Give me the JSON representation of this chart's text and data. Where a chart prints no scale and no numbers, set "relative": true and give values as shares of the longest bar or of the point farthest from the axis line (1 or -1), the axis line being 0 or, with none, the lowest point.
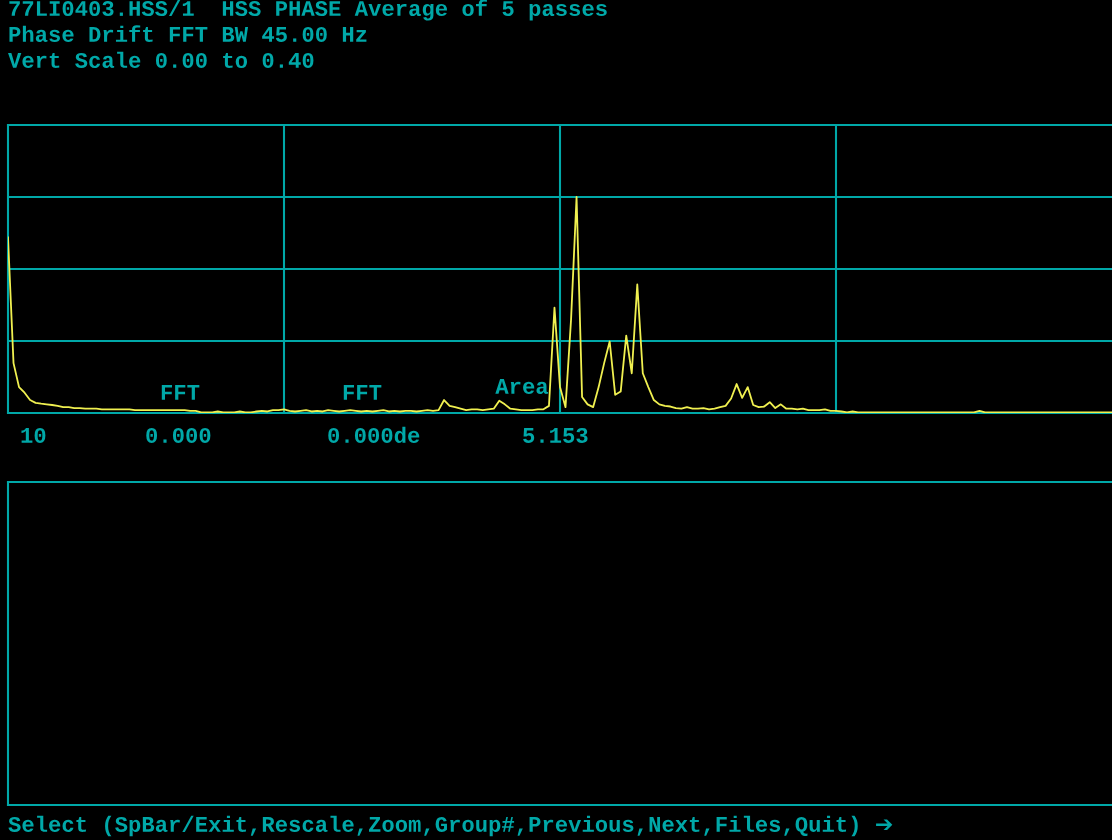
{
  "chart_data": {
    "type": "line",
    "title": "77LI0403.HSS/1  HSS PHASE Average of 5 passes",
    "subtitle": "Phase Drift FFT BW 45.00 Hz",
    "annotations": [
      "Vert Scale 0.00 to 0.40",
      "FFT",
      "FFT",
      "Area",
      "10",
      "0.000",
      "0.000de",
      "5.153",
      "Select (SpBar/Exit,Rescale,Zoom,Group#,Previous,Next,Files,Quit) ➔"
    ],
    "categories": [
      null,
      null,
      null,
      null,
      null,
      null,
      null,
      null,
      null,
      null,
      null,
      null,
      null,
      null,
      null,
      null,
      null,
      null,
      null,
      null,
      null,
      null,
      null,
      null,
      null,
      null,
      null,
      null,
      null,
      null,
      null,
      null,
      null,
      null,
      null,
      null,
      null,
      null,
      null,
      null,
      null,
      null,
      null,
      null,
      null,
      null,
      null,
      null,
      null,
      null,
      null,
      null,
      null,
      null,
      null,
      null,
      null,
      null,
      null,
      null,
      null,
      null,
      null,
      null,
      null,
      null,
      null,
      null,
      null,
      null,
      null,
      null,
      null,
      null,
      null,
      null,
      null,
      null,
      null,
      null,
      null,
      null,
      null,
      null,
      null,
      null,
      null,
      null,
      null,
      null,
      null,
      null,
      null,
      null,
      null,
      null,
      null,
      null,
      null,
      null,
      null,
      null,
      null,
      null,
      null,
      null,
      null,
      null,
      null,
      null,
      null,
      null,
      null,
      null,
      null,
      null,
      null,
      null,
      null,
      null,
      null,
      null,
      null,
      null,
      null,
      null,
      null,
      null,
      null,
      null,
      null,
      null,
      null,
      null,
      null,
      null,
      null,
      null,
      null,
      null,
      null,
      null,
      null,
      null,
      null,
      null,
      null,
      null,
      null,
      null,
      null,
      null,
      null,
      null,
      null,
      null,
      null,
      null,
      null,
      null,
      null,
      null,
      null,
      null,
      null,
      null,
      null,
      null,
      null,
      null,
      null,
      null,
      null,
      null,
      null,
      null,
      null,
      null,
      null,
      null,
      null,
      null,
      null,
      null,
      null,
      null,
      null,
      null,
      null,
      null,
      null,
      null,
      null,
      null,
      null,
      null,
      null,
      null,
      null,
      null,
      null
    ],
    "series": [
      {
        "color": "#f0f050",
        "values": [
          0.813,
          0.231,
          0.12,
          0.094,
          0.06,
          0.047,
          0.043,
          0.04,
          0.037,
          0.033,
          0.027,
          0.027,
          0.023,
          0.023,
          0.02,
          0.02,
          0.02,
          0.017,
          0.017,
          0.017,
          0.017,
          0.017,
          0.017,
          0.013,
          0.013,
          0.013,
          0.013,
          0.013,
          0.013,
          0.013,
          0.013,
          0.013,
          0.013,
          0.01,
          0.01,
          0.003,
          0.003,
          0.003,
          0.007,
          0.003,
          0.003,
          0.003,
          0.007,
          0.003,
          0.003,
          0.007,
          0.01,
          0.007,
          0.013,
          0.013,
          0.017,
          0.01,
          0.007,
          0.01,
          0.013,
          0.007,
          0.01,
          0.007,
          0.013,
          0.01,
          0.007,
          0.01,
          0.013,
          0.01,
          0.007,
          0.01,
          0.007,
          0.01,
          0.013,
          0.007,
          0.01,
          0.007,
          0.01,
          0.01,
          0.007,
          0.01,
          0.013,
          0.01,
          0.013,
          0.06,
          0.033,
          0.027,
          0.02,
          0.013,
          0.017,
          0.017,
          0.013,
          0.017,
          0.02,
          0.057,
          0.04,
          0.02,
          0.017,
          0.013,
          0.013,
          0.013,
          0.017,
          0.017,
          0.033,
          0.488,
          0.12,
          0.027,
          0.431,
          1,
          0.074,
          0.04,
          0.027,
          0.12,
          0.231,
          0.331,
          0.084,
          0.1,
          0.358,
          0.184,
          0.595,
          0.184,
          0.12,
          0.06,
          0.04,
          0.033,
          0.03,
          0.023,
          0.02,
          0.027,
          0.02,
          0.02,
          0.023,
          0.017,
          0.02,
          0.027,
          0.033,
          0.067,
          0.134,
          0.07,
          0.12,
          0.037,
          0.027,
          0.03,
          0.05,
          0.023,
          0.04,
          0.02,
          0.02,
          0.017,
          0.02,
          0.013,
          0.013,
          0.013,
          0.017,
          0.01,
          0.01,
          0.007,
          0.003,
          0.007,
          0.003,
          0.003,
          0.003,
          0.003,
          0.003,
          0.003,
          0.003,
          0.003,
          0.003,
          0.003,
          0.003,
          0.003,
          0.003,
          0.003,
          0.003,
          0.003,
          0.003,
          0.003,
          0.003,
          0.003,
          0.003,
          0.003,
          0.01,
          0.003,
          0.003,
          0.003,
          0.003,
          0.003,
          0.003,
          0.003,
          0.003,
          0.003,
          0.003,
          0.003,
          0.003,
          0.003,
          0.003,
          0.003,
          0.003,
          0.003,
          0.003,
          0.003,
          0.003,
          0.003,
          0.003,
          0.003,
          0.003
        ]
      }
    ],
    "relative": true,
    "grid": true
  }
}
